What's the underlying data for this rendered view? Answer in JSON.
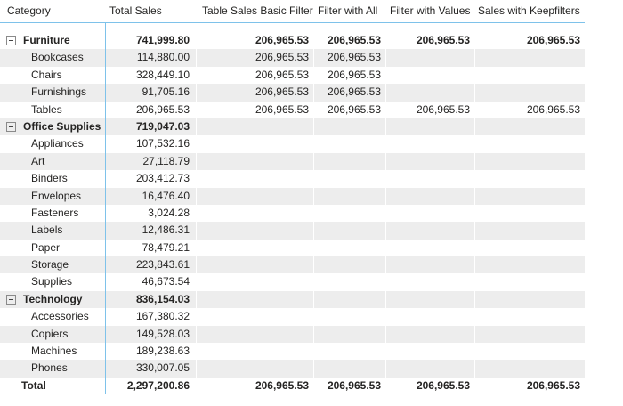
{
  "matrix": {
    "columns": [
      {
        "label": "Category"
      },
      {
        "label": "Total Sales"
      },
      {
        "label": "Table Sales Basic Filter"
      },
      {
        "label": "Filter with All"
      },
      {
        "label": "Filter with Values"
      },
      {
        "label": "Sales with Keepfilters"
      }
    ],
    "rows": [
      {
        "level": "category",
        "label": "Furniture",
        "values": [
          "741,999.80",
          "206,965.53",
          "206,965.53",
          "206,965.53",
          "206,965.53"
        ]
      },
      {
        "level": "sub",
        "label": "Bookcases",
        "values": [
          "114,880.00",
          "206,965.53",
          "206,965.53",
          "",
          ""
        ]
      },
      {
        "level": "sub",
        "label": "Chairs",
        "values": [
          "328,449.10",
          "206,965.53",
          "206,965.53",
          "",
          ""
        ]
      },
      {
        "level": "sub",
        "label": "Furnishings",
        "values": [
          "91,705.16",
          "206,965.53",
          "206,965.53",
          "",
          ""
        ]
      },
      {
        "level": "sub",
        "label": "Tables",
        "values": [
          "206,965.53",
          "206,965.53",
          "206,965.53",
          "206,965.53",
          "206,965.53"
        ]
      },
      {
        "level": "category",
        "label": "Office Supplies",
        "values": [
          "719,047.03",
          "",
          "",
          "",
          ""
        ]
      },
      {
        "level": "sub",
        "label": "Appliances",
        "values": [
          "107,532.16",
          "",
          "",
          "",
          ""
        ]
      },
      {
        "level": "sub",
        "label": "Art",
        "values": [
          "27,118.79",
          "",
          "",
          "",
          ""
        ]
      },
      {
        "level": "sub",
        "label": "Binders",
        "values": [
          "203,412.73",
          "",
          "",
          "",
          ""
        ]
      },
      {
        "level": "sub",
        "label": "Envelopes",
        "values": [
          "16,476.40",
          "",
          "",
          "",
          ""
        ]
      },
      {
        "level": "sub",
        "label": "Fasteners",
        "values": [
          "3,024.28",
          "",
          "",
          "",
          ""
        ]
      },
      {
        "level": "sub",
        "label": "Labels",
        "values": [
          "12,486.31",
          "",
          "",
          "",
          ""
        ]
      },
      {
        "level": "sub",
        "label": "Paper",
        "values": [
          "78,479.21",
          "",
          "",
          "",
          ""
        ]
      },
      {
        "level": "sub",
        "label": "Storage",
        "values": [
          "223,843.61",
          "",
          "",
          "",
          ""
        ]
      },
      {
        "level": "sub",
        "label": "Supplies",
        "values": [
          "46,673.54",
          "",
          "",
          "",
          ""
        ]
      },
      {
        "level": "category",
        "label": "Technology",
        "values": [
          "836,154.03",
          "",
          "",
          "",
          ""
        ]
      },
      {
        "level": "sub",
        "label": "Accessories",
        "values": [
          "167,380.32",
          "",
          "",
          "",
          ""
        ]
      },
      {
        "level": "sub",
        "label": "Copiers",
        "values": [
          "149,528.03",
          "",
          "",
          "",
          ""
        ]
      },
      {
        "level": "sub",
        "label": "Machines",
        "values": [
          "189,238.63",
          "",
          "",
          "",
          ""
        ]
      },
      {
        "level": "sub",
        "label": "Phones",
        "values": [
          "330,007.05",
          "",
          "",
          "",
          ""
        ]
      },
      {
        "level": "total",
        "label": "Total",
        "values": [
          "2,297,200.86",
          "206,965.53",
          "206,965.53",
          "206,965.53",
          "206,965.53"
        ]
      }
    ],
    "icons": {
      "collapse": "minus-box-icon"
    },
    "colors": {
      "grid_accent": "#7ec2ea",
      "row_stripe": "#ededed",
      "text": "#252423",
      "background": "#ffffff"
    }
  }
}
